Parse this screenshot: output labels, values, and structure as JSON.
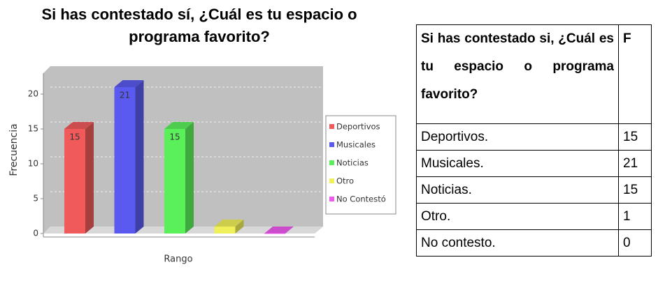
{
  "chart_data": {
    "type": "bar3d",
    "title": [
      "Si has contestado sí, ¿Cuál es tu espacio o",
      "programa favorito?"
    ],
    "ylabel": "Frecuencia",
    "xlabel": "Rango",
    "series": [
      {
        "name": "Deportivos",
        "color": "#f05a5a",
        "values": [
          15
        ],
        "value_labels": [
          "15"
        ]
      },
      {
        "name": "Musicales",
        "color": "#5a5af0",
        "values": [
          21
        ],
        "value_labels": [
          "21"
        ]
      },
      {
        "name": "Noticias",
        "color": "#5af05a",
        "values": [
          15
        ],
        "value_labels": [
          "15"
        ]
      },
      {
        "name": "Otro",
        "color": "#f0f05a",
        "values": [
          1
        ],
        "value_labels": [
          null
        ]
      },
      {
        "name": "No Contestó",
        "color": "#f05af0",
        "values": [
          0
        ],
        "value_labels": [
          null
        ]
      }
    ],
    "ylim": [
      0,
      23
    ],
    "yticks": [
      0,
      5,
      10,
      15,
      20
    ],
    "grid": true,
    "legend": "right"
  },
  "table": {
    "header": [
      "Si has contestado si, ¿Cuál es tu espacio o programa favorito?",
      "F"
    ],
    "rows": [
      [
        "Deportivos.",
        15
      ],
      [
        "Musicales.",
        21
      ],
      [
        "Noticias.",
        15
      ],
      [
        "Otro.",
        1
      ],
      [
        "No contesto.",
        0
      ]
    ]
  }
}
